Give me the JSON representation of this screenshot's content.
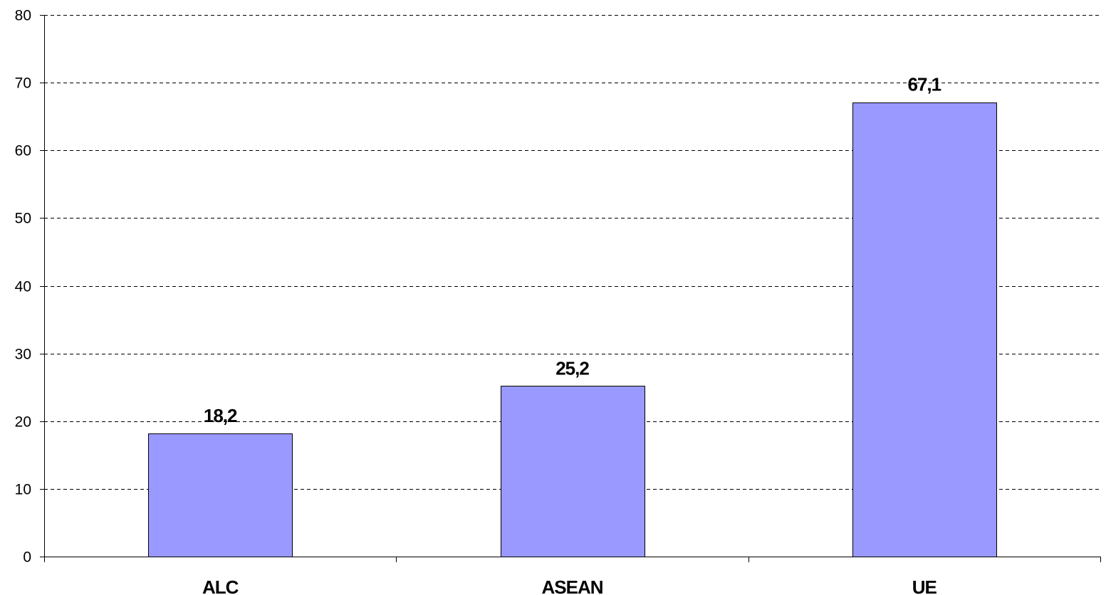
{
  "chart_data": {
    "type": "bar",
    "categories": [
      "ALC",
      "ASEAN",
      "UE"
    ],
    "values": [
      18.2,
      25.2,
      67.1
    ],
    "data_labels": [
      "18,2",
      "25,2",
      "67,1"
    ],
    "ylim": [
      0,
      80
    ],
    "yticks": [
      0,
      10,
      20,
      30,
      40,
      50,
      60,
      70,
      80
    ],
    "ytick_labels": [
      "0",
      "10",
      "20",
      "30",
      "40",
      "50",
      "60",
      "70",
      "80"
    ],
    "title": "",
    "xlabel": "",
    "ylabel": "",
    "grid": true,
    "legend": "none",
    "colors": {
      "bar_fill": "#9999ff",
      "bar_stroke": "#000000",
      "grid": "#000000",
      "axis": "#000000"
    }
  }
}
